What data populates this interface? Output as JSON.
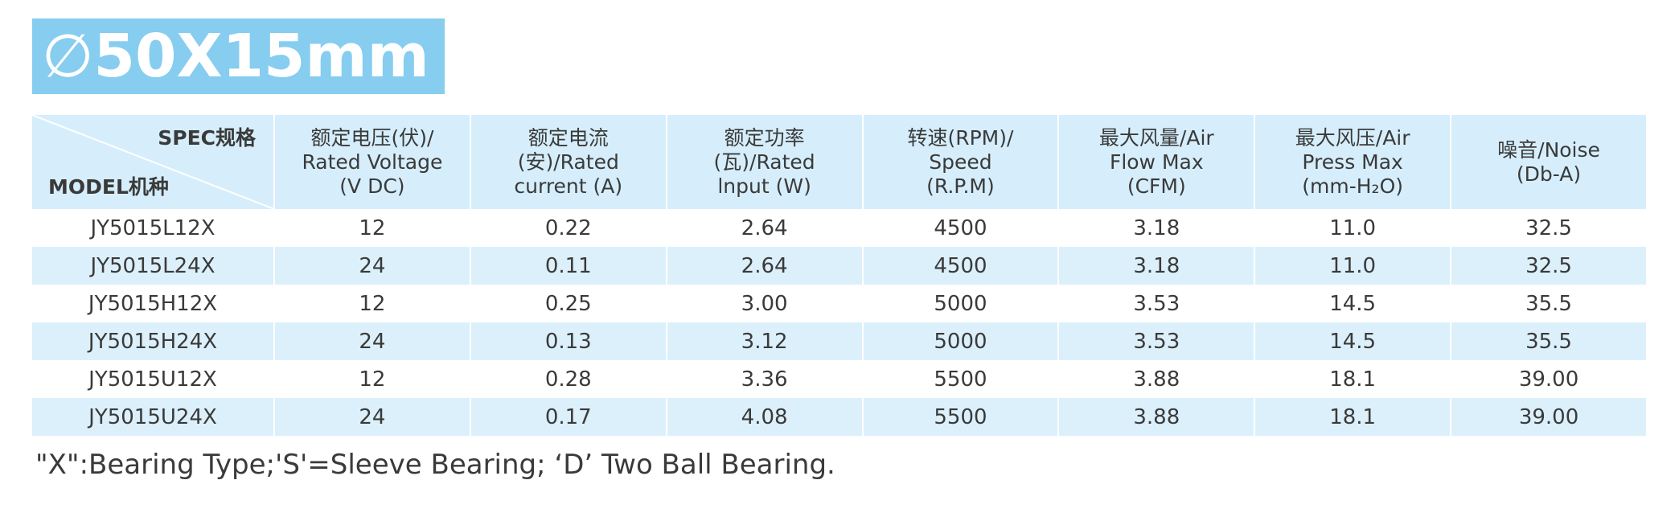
{
  "title": {
    "symbol": "∅",
    "text": "50X15mm"
  },
  "table": {
    "corner": {
      "top": "SPEC规格",
      "bottom": "MODEL机种"
    },
    "columns": [
      [
        "额定电压(伏)/",
        "Rated Voltage",
        "(V DC)"
      ],
      [
        "额定电流",
        "(安)/Rated",
        "current (A)"
      ],
      [
        "额定功率",
        "(瓦)/Rated",
        "lnput (W)"
      ],
      [
        "转速(RPM)/",
        "Speed",
        "(R.P.M)"
      ],
      [
        "最大风量/Air",
        "Flow Max",
        "(CFM)"
      ],
      [
        "最大风压/Air",
        "Press Max",
        "(mm-H₂O)"
      ],
      [
        "噪音/Noise",
        "(Db-A)"
      ]
    ],
    "rows": [
      [
        "JY5015L12X",
        "12",
        "0.22",
        "2.64",
        "4500",
        "3.18",
        "11.0",
        "32.5"
      ],
      [
        "JY5015L24X",
        "24",
        "0.11",
        "2.64",
        "4500",
        "3.18",
        "11.0",
        "32.5"
      ],
      [
        "JY5015H12X",
        "12",
        "0.25",
        "3.00",
        "5000",
        "3.53",
        "14.5",
        "35.5"
      ],
      [
        "JY5015H24X",
        "24",
        "0.13",
        "3.12",
        "5000",
        "3.53",
        "14.5",
        "35.5"
      ],
      [
        "JY5015U12X",
        "12",
        "0.28",
        "3.36",
        "5500",
        "3.88",
        "18.1",
        "39.00"
      ],
      [
        "JY5015U24X",
        "24",
        "0.17",
        "4.08",
        "5500",
        "3.88",
        "18.1",
        "39.00"
      ]
    ]
  },
  "footnote": "\"X\":Bearing Type;'S'=Sleeve Bearing; ‘D’ Two Ball Bearing."
}
